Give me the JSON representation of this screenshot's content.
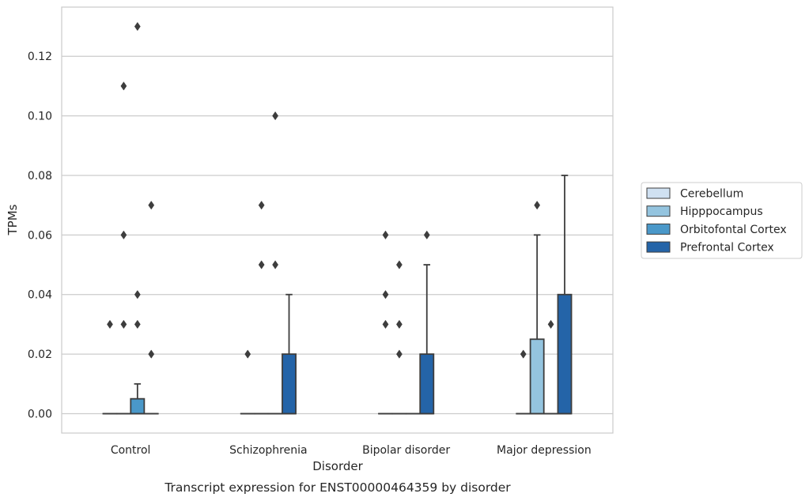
{
  "chart_data": {
    "type": "box",
    "xlabel": "Disorder",
    "ylabel": "TPMs",
    "caption": "Transcript expression for ENST00000464359 by disorder",
    "categories": [
      "Control",
      "Schizophrenia",
      "Bipolar disorder",
      "Major depression"
    ],
    "ylim": [
      -0.0065,
      0.1365
    ],
    "yticks": [
      0.0,
      0.02,
      0.04,
      0.06,
      0.08,
      0.1,
      0.12
    ],
    "ytick_labels": [
      "0.00",
      "0.02",
      "0.04",
      "0.06",
      "0.08",
      "0.10",
      "0.12"
    ],
    "grid": "horizontal",
    "legend_position": "right",
    "series": [
      {
        "name": "Cerebellum",
        "color": "#d0e1f2",
        "boxes": [
          {
            "q1": 0,
            "median": 0,
            "q3": 0,
            "whisker_low": 0,
            "whisker_high": 0,
            "outliers": [
              0.03
            ]
          },
          {
            "q1": 0,
            "median": 0,
            "q3": 0,
            "whisker_low": 0,
            "whisker_high": 0,
            "outliers": [
              0.02
            ]
          },
          {
            "q1": 0,
            "median": 0,
            "q3": 0,
            "whisker_low": 0,
            "whisker_high": 0,
            "outliers": [
              0.03,
              0.04,
              0.06
            ]
          },
          {
            "q1": 0,
            "median": 0,
            "q3": 0,
            "whisker_low": 0,
            "whisker_high": 0,
            "outliers": [
              0.02
            ]
          }
        ]
      },
      {
        "name": "Hipppocampus",
        "color": "#94c4df",
        "boxes": [
          {
            "q1": 0,
            "median": 0,
            "q3": 0,
            "whisker_low": 0,
            "whisker_high": 0,
            "outliers": [
              0.03,
              0.06,
              0.11
            ]
          },
          {
            "q1": 0,
            "median": 0,
            "q3": 0,
            "whisker_low": 0,
            "whisker_high": 0,
            "outliers": [
              0.05,
              0.07
            ]
          },
          {
            "q1": 0,
            "median": 0,
            "q3": 0,
            "whisker_low": 0,
            "whisker_high": 0,
            "outliers": [
              0.02,
              0.03,
              0.05
            ]
          },
          {
            "q1": 0,
            "median": 0,
            "q3": 0.025,
            "whisker_low": 0,
            "whisker_high": 0.06,
            "outliers": [
              0.07
            ]
          }
        ]
      },
      {
        "name": "Orbitofontal Cortex",
        "color": "#4a98c9",
        "boxes": [
          {
            "q1": 0,
            "median": 0,
            "q3": 0.005,
            "whisker_low": 0,
            "whisker_high": 0.01,
            "outliers": [
              0.03,
              0.04,
              0.13
            ]
          },
          {
            "q1": 0,
            "median": 0,
            "q3": 0,
            "whisker_low": 0,
            "whisker_high": 0,
            "outliers": [
              0.05,
              0.1
            ]
          },
          {
            "q1": 0,
            "median": 0,
            "q3": 0,
            "whisker_low": 0,
            "whisker_high": 0,
            "outliers": []
          },
          {
            "q1": 0,
            "median": 0,
            "q3": 0,
            "whisker_low": 0,
            "whisker_high": 0,
            "outliers": [
              0.03
            ]
          }
        ]
      },
      {
        "name": "Prefrontal Cortex",
        "color": "#2464a8",
        "boxes": [
          {
            "q1": 0,
            "median": 0,
            "q3": 0,
            "whisker_low": 0,
            "whisker_high": 0,
            "outliers": [
              0.02,
              0.07
            ]
          },
          {
            "q1": 0,
            "median": 0,
            "q3": 0.02,
            "whisker_low": 0,
            "whisker_high": 0.04,
            "outliers": []
          },
          {
            "q1": 0,
            "median": 0,
            "q3": 0.02,
            "whisker_low": 0,
            "whisker_high": 0.05,
            "outliers": [
              0.06
            ]
          },
          {
            "q1": 0,
            "median": 0,
            "q3": 0.04,
            "whisker_low": 0,
            "whisker_high": 0.08,
            "outliers": []
          }
        ]
      }
    ]
  }
}
